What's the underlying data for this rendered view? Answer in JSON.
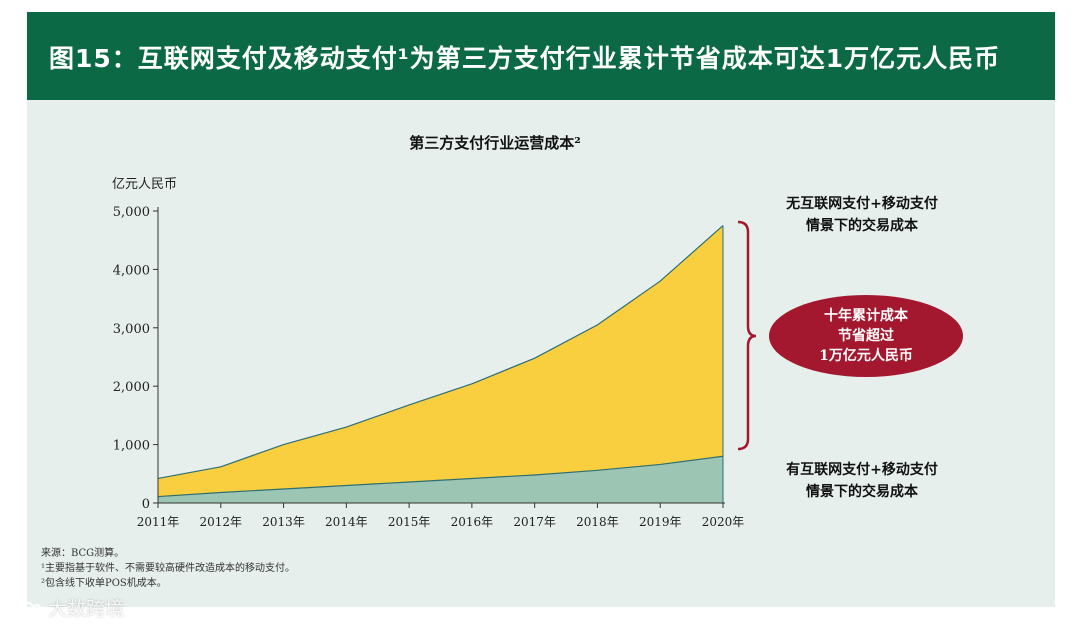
{
  "header": {
    "title": "图15：互联网支付及移动支付¹为第三方支付行业累计节省成本可达1万亿元人民币"
  },
  "chart_data": {
    "type": "area",
    "title": "第三方支付行业运营成本²",
    "ylabel": "亿元人民币",
    "xlabel": "",
    "categories": [
      "2011年",
      "2012年",
      "2013年",
      "2014年",
      "2015年",
      "2016年",
      "2017年",
      "2018年",
      "2019年",
      "2020年"
    ],
    "ylim": [
      0,
      5000
    ],
    "yticks": [
      "0",
      "1,000",
      "2,000",
      "3,000",
      "4,000",
      "5,000"
    ],
    "series": [
      {
        "name": "有互联网支付+移动支付情景下的交易成本",
        "color": "#9cc5b4",
        "values": [
          110,
          180,
          240,
          300,
          360,
          420,
          480,
          560,
          660,
          800
        ]
      },
      {
        "name": "无互联网支付+移动支付情景下的交易成本",
        "color": "#f9cf3f",
        "values": [
          420,
          620,
          1000,
          1300,
          1680,
          2040,
          2480,
          3050,
          3800,
          4750
        ]
      }
    ],
    "legend_top": [
      "无互联网支付+移动支付",
      "情景下的交易成本"
    ],
    "legend_bottom": [
      "有互联网支付+移动支付",
      "情景下的交易成本"
    ],
    "callout": [
      "十年累计成本",
      "节省超过",
      "1万亿元人民币"
    ],
    "callout_color": "#a3182f"
  },
  "footnotes": {
    "source": "来源：BCG测算。",
    "note1": "¹主要指基于软件、不需要较高硬件改造成本的移动支付。",
    "note2": "²包含线下收单POS机成本。"
  },
  "watermark": {
    "text": "大数跨境",
    "icon": "brand-logo-icon"
  }
}
